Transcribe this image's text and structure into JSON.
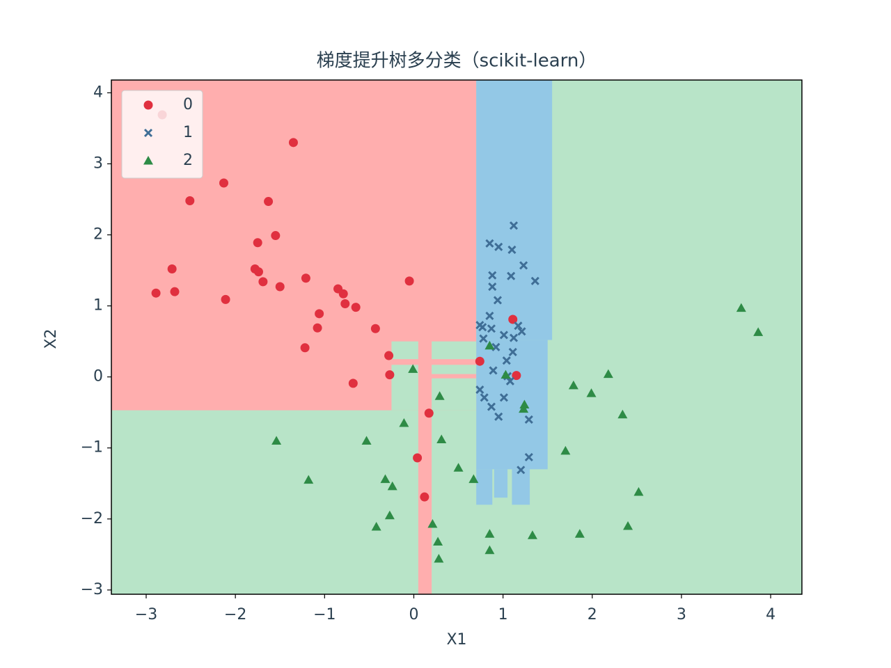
{
  "chart_data": {
    "type": "scatter",
    "title": "梯度提升树多分类（scikit-learn）",
    "x_label": "X1",
    "y_label": "X2",
    "xlim": [
      -3.39,
      4.35
    ],
    "ylim": [
      -3.06,
      4.18
    ],
    "xticks": [
      {
        "value": -3,
        "label": "−3"
      },
      {
        "value": -2,
        "label": "−2"
      },
      {
        "value": -1,
        "label": "−1"
      },
      0,
      1,
      2,
      3,
      4
    ],
    "yticks": [
      {
        "value": -3,
        "label": "−3"
      },
      {
        "value": -2,
        "label": "−2"
      },
      {
        "value": -1,
        "label": "−1"
      },
      0,
      1,
      2,
      3,
      4
    ],
    "legend": "upper left",
    "series": [
      {
        "name": "0",
        "color": "#e0303f",
        "marker": "circle",
        "x": [
          -2.82,
          -1.35,
          -2.13,
          -2.51,
          -1.63,
          -1.55,
          -1.75,
          -2.71,
          -1.78,
          -1.74,
          -1.69,
          -1.5,
          -2.89,
          -2.68,
          -1.21,
          -0.05,
          -0.85,
          -0.79,
          -2.11,
          -0.77,
          -0.65,
          -1.06,
          -1.08,
          -0.43,
          -1.22,
          -0.28,
          -0.27,
          -0.68,
          0.74,
          1.11,
          1.15,
          0.17,
          0.04,
          0.12
        ],
        "values": [
          3.69,
          3.3,
          2.73,
          2.48,
          2.47,
          1.99,
          1.89,
          1.52,
          1.52,
          1.48,
          1.34,
          1.27,
          1.18,
          1.2,
          1.39,
          1.35,
          1.24,
          1.17,
          1.09,
          1.03,
          0.98,
          0.89,
          0.69,
          0.68,
          0.41,
          0.3,
          0.03,
          -0.09,
          0.22,
          0.81,
          0.02,
          -0.51,
          -1.14,
          -1.69
        ]
      },
      {
        "name": "1",
        "color": "#3f6e96",
        "marker": "x",
        "x": [
          1.12,
          0.85,
          0.95,
          1.1,
          1.23,
          0.88,
          1.09,
          1.36,
          0.88,
          0.94,
          0.85,
          0.74,
          0.77,
          0.87,
          1.17,
          1.21,
          1.01,
          1.12,
          0.78,
          0.92,
          1.11,
          1.04,
          0.89,
          1.05,
          1.08,
          0.74,
          0.79,
          1.01,
          0.87,
          0.95,
          1.29,
          1.29,
          1.2
        ],
        "values": [
          2.13,
          1.88,
          1.83,
          1.79,
          1.57,
          1.43,
          1.42,
          1.35,
          1.27,
          1.08,
          0.86,
          0.73,
          0.7,
          0.68,
          0.72,
          0.64,
          0.59,
          0.55,
          0.54,
          0.42,
          0.35,
          0.23,
          0.09,
          0.01,
          -0.06,
          -0.18,
          -0.29,
          -0.29,
          -0.42,
          -0.56,
          -0.6,
          -1.13,
          -1.31
        ]
      },
      {
        "name": "2",
        "color": "#2e8b46",
        "marker": "triangle",
        "x": [
          3.67,
          3.86,
          -0.01,
          0.85,
          1.03,
          2.18,
          1.79,
          1.99,
          0.29,
          1.24,
          1.23,
          2.34,
          -0.11,
          -1.54,
          -0.53,
          0.31,
          1.7,
          0.5,
          -0.32,
          -1.18,
          0.67,
          -0.24,
          2.52,
          -0.27,
          -0.42,
          0.21,
          2.4,
          0.85,
          1.33,
          1.86,
          0.27,
          0.85,
          0.28
        ],
        "values": [
          0.97,
          0.63,
          0.11,
          0.44,
          0.03,
          0.04,
          -0.12,
          -0.23,
          -0.27,
          -0.39,
          -0.45,
          -0.53,
          -0.65,
          -0.9,
          -0.9,
          -0.88,
          -1.04,
          -1.28,
          -1.44,
          -1.45,
          -1.44,
          -1.54,
          -1.62,
          -1.95,
          -2.11,
          -2.07,
          -2.1,
          -2.21,
          -2.23,
          -2.21,
          -2.32,
          -2.44,
          -2.56
        ]
      }
    ]
  }
}
